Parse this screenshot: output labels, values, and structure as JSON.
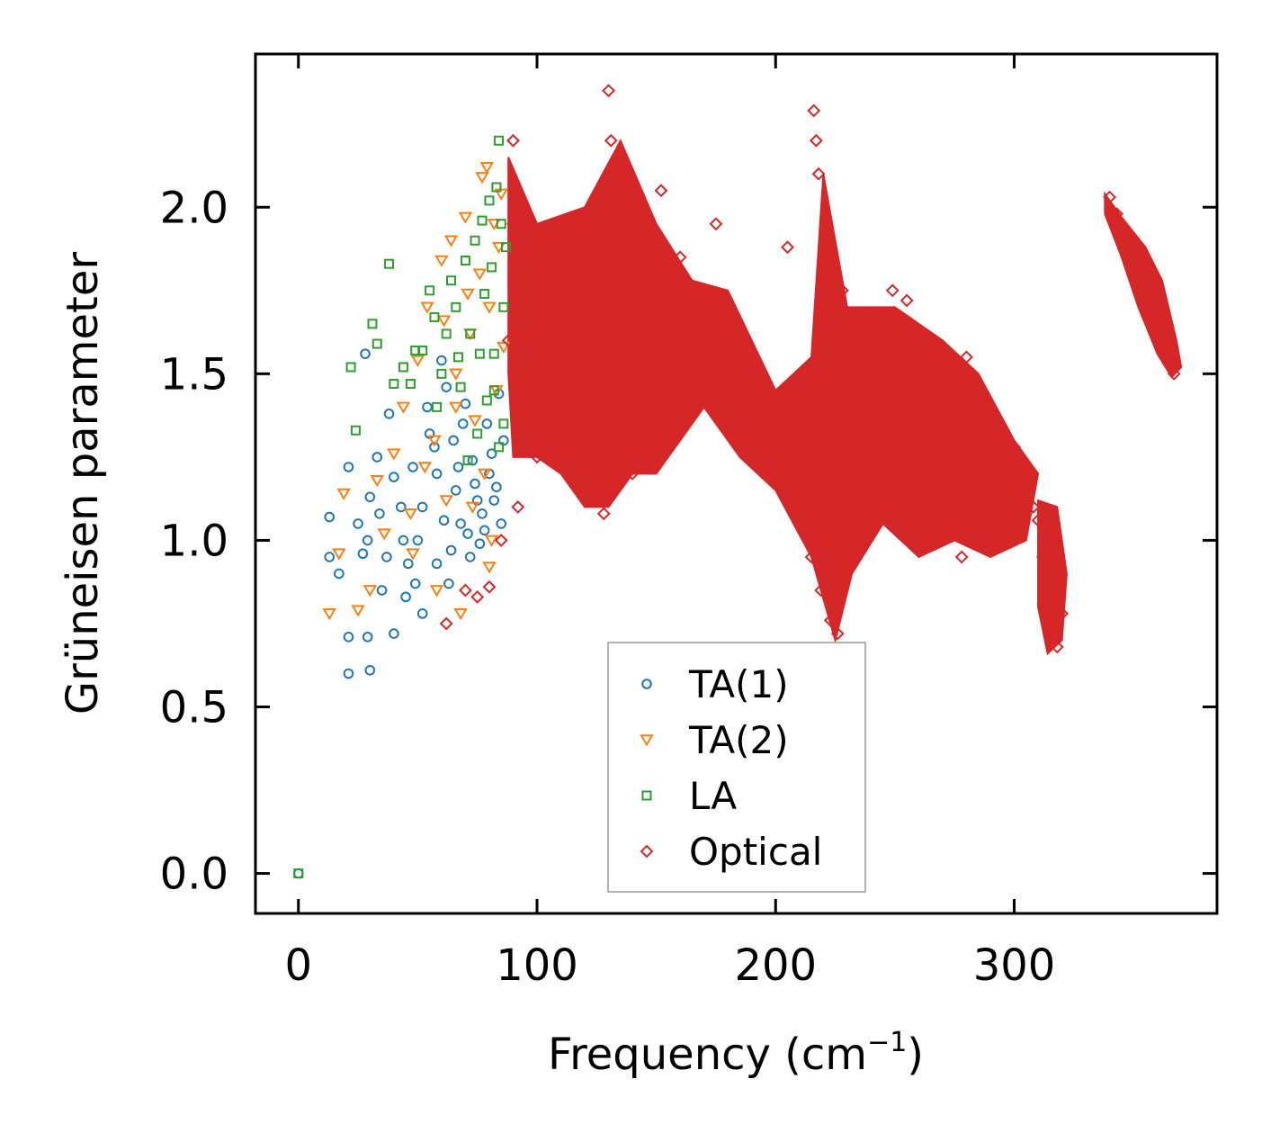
{
  "chart_data": {
    "type": "scatter",
    "title": "",
    "xlabel": "Frequency (cm",
    "xlabel_superscript": "−1",
    "xlabel_suffix": ")",
    "ylabel": "Grüneisen parameter",
    "xlim": [
      -18,
      385
    ],
    "ylim": [
      -0.12,
      2.46
    ],
    "xticks": [
      0,
      100,
      200,
      300
    ],
    "xtick_labels": [
      "0",
      "100",
      "200",
      "300"
    ],
    "yticks": [
      0.0,
      0.5,
      1.0,
      1.5,
      2.0
    ],
    "ytick_labels": [
      "0.0",
      "0.5",
      "1.0",
      "1.5",
      "2.0"
    ],
    "legend_position": "lower-center",
    "series": [
      {
        "name": "TA(1)",
        "marker": "circle",
        "color": "#1f77b4",
        "points": [
          [
            0,
            0
          ],
          [
            21,
            0.6
          ],
          [
            30,
            0.61
          ],
          [
            21,
            0.71
          ],
          [
            29,
            0.71
          ],
          [
            13,
            0.95
          ],
          [
            17,
            0.9
          ],
          [
            13,
            1.07
          ],
          [
            21,
            1.22
          ],
          [
            25,
            1.05
          ],
          [
            27,
            0.96
          ],
          [
            30,
            1.13
          ],
          [
            29,
            1.0
          ],
          [
            33,
            1.25
          ],
          [
            34,
            1.08
          ],
          [
            28,
            1.56
          ],
          [
            38,
            1.38
          ],
          [
            40,
            1.19
          ],
          [
            44,
            1.0
          ],
          [
            46,
            0.93
          ],
          [
            49,
            0.87
          ],
          [
            52,
            1.1
          ],
          [
            55,
            1.32
          ],
          [
            58,
            1.2
          ],
          [
            60,
            1.54
          ],
          [
            62,
            1.46
          ],
          [
            65,
            1.3
          ],
          [
            67,
            1.22
          ],
          [
            70,
            1.41
          ],
          [
            71,
            1.02
          ],
          [
            74,
            1.17
          ],
          [
            76,
            0.99
          ],
          [
            77,
            1.08
          ],
          [
            79,
            1.35
          ],
          [
            81,
            1.26
          ],
          [
            82,
            1.12
          ],
          [
            84,
            1.44
          ],
          [
            86,
            1.3
          ],
          [
            45,
            0.83
          ],
          [
            52,
            0.78
          ],
          [
            58,
            0.93
          ],
          [
            63,
            0.87
          ],
          [
            68,
            1.05
          ],
          [
            72,
            0.95
          ],
          [
            35,
            0.85
          ],
          [
            40,
            0.72
          ],
          [
            48,
            1.22
          ],
          [
            54,
            1.4
          ],
          [
            61,
            1.06
          ],
          [
            66,
            1.15
          ],
          [
            73,
            1.24
          ],
          [
            78,
            1.03
          ],
          [
            83,
            1.16
          ],
          [
            37,
            0.95
          ],
          [
            43,
            1.1
          ],
          [
            50,
            1.0
          ],
          [
            57,
            1.28
          ],
          [
            64,
            0.97
          ],
          [
            69,
            1.35
          ],
          [
            75,
            1.12
          ],
          [
            80,
            1.2
          ],
          [
            85,
            1.05
          ]
        ]
      },
      {
        "name": "TA(2)",
        "marker": "triangle-down",
        "color": "#ff7f0e",
        "points": [
          [
            13,
            0.78
          ],
          [
            17,
            0.96
          ],
          [
            19,
            1.14
          ],
          [
            25,
            0.79
          ],
          [
            30,
            0.85
          ],
          [
            33,
            1.18
          ],
          [
            36,
            1.02
          ],
          [
            40,
            1.26
          ],
          [
            44,
            1.4
          ],
          [
            48,
            0.96
          ],
          [
            50,
            1.54
          ],
          [
            54,
            1.7
          ],
          [
            57,
            1.3
          ],
          [
            60,
            1.84
          ],
          [
            62,
            1.12
          ],
          [
            64,
            1.9
          ],
          [
            66,
            1.5
          ],
          [
            68,
            0.78
          ],
          [
            70,
            1.97
          ],
          [
            72,
            1.62
          ],
          [
            74,
            1.36
          ],
          [
            76,
            1.8
          ],
          [
            77,
            2.09
          ],
          [
            78,
            1.2
          ],
          [
            79,
            2.12
          ],
          [
            80,
            1.7
          ],
          [
            81,
            1.0
          ],
          [
            82,
            1.95
          ],
          [
            83,
            1.45
          ],
          [
            84,
            1.88
          ],
          [
            85,
            2.04
          ],
          [
            86,
            1.58
          ],
          [
            58,
            0.85
          ],
          [
            66,
            1.4
          ],
          [
            73,
            1.1
          ],
          [
            53,
            1.22
          ],
          [
            47,
            1.08
          ],
          [
            61,
            1.66
          ],
          [
            71,
            1.74
          ],
          [
            80,
            0.92
          ]
        ]
      },
      {
        "name": "LA",
        "marker": "square",
        "color": "#2ca02c",
        "points": [
          [
            0,
            0
          ],
          [
            22,
            1.52
          ],
          [
            24,
            1.33
          ],
          [
            31,
            1.65
          ],
          [
            33,
            1.59
          ],
          [
            38,
            1.83
          ],
          [
            40,
            1.47
          ],
          [
            44,
            1.52
          ],
          [
            49,
            1.57
          ],
          [
            52,
            1.57
          ],
          [
            55,
            1.75
          ],
          [
            58,
            1.4
          ],
          [
            60,
            1.5
          ],
          [
            62,
            1.62
          ],
          [
            64,
            1.78
          ],
          [
            66,
            1.7
          ],
          [
            68,
            1.46
          ],
          [
            70,
            1.84
          ],
          [
            72,
            1.62
          ],
          [
            74,
            1.9
          ],
          [
            76,
            1.56
          ],
          [
            77,
            1.96
          ],
          [
            78,
            1.74
          ],
          [
            79,
            1.42
          ],
          [
            80,
            2.02
          ],
          [
            81,
            1.82
          ],
          [
            82,
            1.56
          ],
          [
            83,
            2.06
          ],
          [
            84,
            2.2
          ],
          [
            85,
            1.95
          ],
          [
            86,
            1.7
          ],
          [
            87,
            1.88
          ],
          [
            86,
            1.35
          ],
          [
            84,
            1.28
          ],
          [
            82,
            1.45
          ],
          [
            75,
            1.32
          ],
          [
            71,
            1.24
          ],
          [
            67,
            1.55
          ],
          [
            57,
            1.67
          ],
          [
            47,
            1.47
          ]
        ]
      },
      {
        "name": "Optical",
        "marker": "diamond",
        "color": "#d62728",
        "points": [
          [
            62,
            0.75
          ],
          [
            70,
            0.85
          ],
          [
            75,
            0.83
          ],
          [
            80,
            0.86
          ],
          [
            85,
            1.0
          ],
          [
            88,
            1.6
          ],
          [
            90,
            1.95
          ],
          [
            90,
            2.2
          ],
          [
            92,
            1.1
          ],
          [
            96,
            1.45
          ],
          [
            100,
            1.9
          ],
          [
            100,
            1.25
          ],
          [
            105,
            1.7
          ],
          [
            108,
            1.3
          ],
          [
            112,
            1.85
          ],
          [
            115,
            1.4
          ],
          [
            118,
            1.75
          ],
          [
            121,
            1.55
          ],
          [
            122,
            1.95
          ],
          [
            125,
            1.15
          ],
          [
            128,
            1.08
          ],
          [
            128,
            1.5
          ],
          [
            130,
            2.35
          ],
          [
            131,
            2.2
          ],
          [
            133,
            1.3
          ],
          [
            135,
            2.05
          ],
          [
            137,
            1.65
          ],
          [
            140,
            1.2
          ],
          [
            141,
            1.9
          ],
          [
            145,
            1.55
          ],
          [
            147,
            1.75
          ],
          [
            150,
            1.35
          ],
          [
            152,
            2.05
          ],
          [
            155,
            1.5
          ],
          [
            158,
            1.7
          ],
          [
            160,
            1.85
          ],
          [
            162,
            1.78
          ],
          [
            165,
            1.62
          ],
          [
            168,
            1.75
          ],
          [
            172,
            1.58
          ],
          [
            175,
            1.95
          ],
          [
            178,
            1.48
          ],
          [
            180,
            1.6
          ],
          [
            183,
            1.55
          ],
          [
            186,
            1.42
          ],
          [
            190,
            1.35
          ],
          [
            193,
            1.48
          ],
          [
            196,
            1.3
          ],
          [
            198,
            1.25
          ],
          [
            200,
            1.22
          ],
          [
            203,
            1.34
          ],
          [
            205,
            1.88
          ],
          [
            208,
            1.15
          ],
          [
            212,
            1.05
          ],
          [
            215,
            0.95
          ],
          [
            216,
            2.29
          ],
          [
            217,
            2.2
          ],
          [
            218,
            2.1
          ],
          [
            219,
            0.85
          ],
          [
            221,
            1.95
          ],
          [
            223,
            0.76
          ],
          [
            225,
            0.67
          ],
          [
            226,
            0.72
          ],
          [
            228,
            1.75
          ],
          [
            230,
            1.5
          ],
          [
            232,
            1.4
          ],
          [
            235,
            1.65
          ],
          [
            238,
            1.3
          ],
          [
            240,
            1.45
          ],
          [
            243,
            1.2
          ],
          [
            246,
            1.55
          ],
          [
            249,
            1.75
          ],
          [
            250,
            1.1
          ],
          [
            252,
            1.35
          ],
          [
            255,
            1.72
          ],
          [
            258,
            1.0
          ],
          [
            260,
            1.6
          ],
          [
            262,
            1.25
          ],
          [
            265,
            1.5
          ],
          [
            268,
            1.05
          ],
          [
            270,
            1.4
          ],
          [
            273,
            1.18
          ],
          [
            276,
            1.35
          ],
          [
            278,
            0.95
          ],
          [
            280,
            1.55
          ],
          [
            283,
            1.25
          ],
          [
            286,
            1.4
          ],
          [
            290,
            1.2
          ],
          [
            292,
            1.05
          ],
          [
            295,
            1.1
          ],
          [
            298,
            1.15
          ],
          [
            300,
            1.28
          ],
          [
            302,
            1.2
          ],
          [
            305,
            1.22
          ],
          [
            308,
            1.1
          ],
          [
            310,
            1.06
          ],
          [
            312,
            0.95
          ],
          [
            314,
            0.85
          ],
          [
            316,
            0.72
          ],
          [
            318,
            0.68
          ],
          [
            320,
            0.78
          ],
          [
            340,
            2.03
          ],
          [
            343,
            1.98
          ],
          [
            346,
            1.92
          ],
          [
            349,
            1.87
          ],
          [
            352,
            1.82
          ],
          [
            355,
            1.77
          ],
          [
            357,
            1.72
          ],
          [
            358,
            1.66
          ],
          [
            360,
            1.6
          ],
          [
            362,
            1.62
          ],
          [
            364,
            1.55
          ],
          [
            366,
            1.52
          ],
          [
            367,
            1.5
          ]
        ]
      }
    ]
  }
}
